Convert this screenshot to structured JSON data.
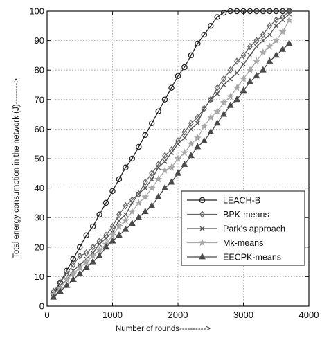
{
  "chart_data": {
    "type": "line",
    "title": "",
    "xlabel": "Number of rounds---------->",
    "ylabel": "Total energy consumption in the network (J)-------->",
    "xlim": [
      0,
      4000
    ],
    "ylim": [
      0,
      100
    ],
    "xticks": [
      0,
      1000,
      2000,
      3000,
      4000
    ],
    "yticks": [
      0,
      10,
      20,
      30,
      40,
      50,
      60,
      70,
      80,
      90,
      100
    ],
    "grid": "dotted",
    "legend_position": "lower-right",
    "colors": {
      "axis": "#111111",
      "grid": "#9a9a9a"
    },
    "series": [
      {
        "name": "LEACH-B",
        "marker": "circle",
        "color": "#222222",
        "x": [
          100,
          200,
          300,
          400,
          500,
          600,
          700,
          800,
          900,
          1000,
          1100,
          1200,
          1300,
          1400,
          1500,
          1600,
          1700,
          1800,
          1900,
          2000,
          2100,
          2200,
          2300,
          2400,
          2500,
          2600,
          2700,
          2800,
          2900,
          3000,
          3100,
          3200,
          3300,
          3400,
          3500,
          3600,
          3700
        ],
        "y": [
          4,
          8,
          12,
          16,
          20,
          24,
          27,
          31,
          35,
          39,
          43,
          47,
          50,
          54,
          58,
          62,
          66,
          70,
          74,
          78,
          81,
          85,
          89,
          92,
          95,
          98,
          99.5,
          100,
          100,
          100,
          100,
          100,
          100,
          100,
          100,
          100,
          100
        ]
      },
      {
        "name": "BPK-means",
        "marker": "diamond",
        "color": "#666666",
        "x": [
          100,
          200,
          300,
          400,
          500,
          600,
          700,
          800,
          900,
          1000,
          1100,
          1200,
          1300,
          1400,
          1500,
          1600,
          1700,
          1800,
          1900,
          2000,
          2100,
          2200,
          2300,
          2400,
          2500,
          2600,
          2700,
          2800,
          2900,
          3000,
          3100,
          3200,
          3300,
          3400,
          3500,
          3600,
          3700
        ],
        "y": [
          5,
          8,
          11,
          14,
          17,
          18,
          20,
          22,
          24,
          27,
          31,
          34,
          36,
          38,
          42,
          45,
          48,
          51,
          53,
          56,
          59,
          62,
          64,
          67,
          70,
          74,
          77,
          80,
          83,
          85,
          88,
          90,
          92,
          95,
          97,
          98,
          100
        ]
      },
      {
        "name": "Park's approach",
        "marker": "x",
        "color": "#555555",
        "x": [
          100,
          200,
          300,
          400,
          500,
          600,
          700,
          800,
          900,
          1000,
          1100,
          1200,
          1300,
          1400,
          1500,
          1600,
          1700,
          1800,
          1900,
          2000,
          2100,
          2200,
          2300,
          2400,
          2500,
          2600,
          2700,
          2800,
          2900,
          3000,
          3100,
          3200,
          3300,
          3400,
          3500,
          3600,
          3700
        ],
        "y": [
          4,
          7,
          9,
          12,
          14,
          16,
          18,
          21,
          23,
          25,
          29,
          31,
          35,
          38,
          40,
          43,
          47,
          49,
          52,
          55,
          57,
          60,
          62,
          67,
          70,
          72,
          75,
          77,
          79,
          82,
          85,
          88,
          90,
          92,
          95,
          97,
          99
        ]
      },
      {
        "name": "Mk-means",
        "marker": "star",
        "color": "#a8a8a8",
        "x": [
          100,
          200,
          300,
          400,
          500,
          600,
          700,
          800,
          900,
          1000,
          1100,
          1200,
          1300,
          1400,
          1500,
          1600,
          1700,
          1800,
          1900,
          2000,
          2100,
          2200,
          2300,
          2400,
          2500,
          2600,
          2700,
          2800,
          2900,
          3000,
          3100,
          3200,
          3300,
          3400,
          3500,
          3600,
          3700
        ],
        "y": [
          4,
          6,
          9,
          11,
          13,
          15,
          17,
          19,
          21,
          24,
          27,
          29,
          32,
          35,
          37,
          40,
          43,
          46,
          47,
          50,
          52,
          55,
          57,
          61,
          64,
          66,
          69,
          71,
          74,
          77,
          80,
          83,
          86,
          88,
          90,
          93,
          97
        ]
      },
      {
        "name": "EECPK-means",
        "marker": "triangle",
        "color": "#4a4a4a",
        "x": [
          100,
          200,
          300,
          400,
          500,
          600,
          700,
          800,
          900,
          1000,
          1100,
          1200,
          1300,
          1400,
          1500,
          1600,
          1700,
          1800,
          1900,
          2000,
          2100,
          2200,
          2300,
          2400,
          2500,
          2600,
          2700,
          2800,
          2900,
          3000,
          3100,
          3200,
          3300,
          3400,
          3500,
          3600,
          3700
        ],
        "y": [
          3,
          5,
          7,
          9,
          11,
          13,
          15,
          17,
          20,
          22,
          24,
          26,
          28,
          30,
          32,
          34,
          37,
          40,
          42,
          45,
          48,
          51,
          54,
          56,
          59,
          62,
          65,
          68,
          70,
          73,
          76,
          78,
          80,
          83,
          85,
          87,
          89
        ]
      }
    ]
  }
}
